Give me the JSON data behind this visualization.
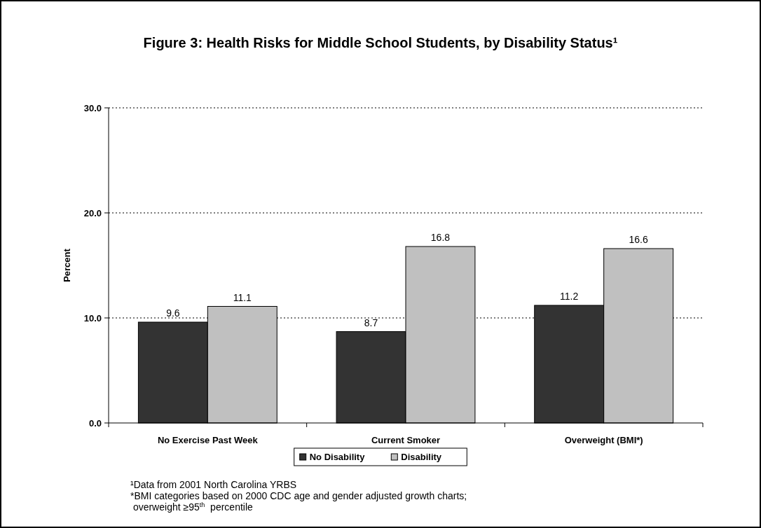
{
  "chart_data": {
    "type": "bar",
    "title": "Figure 3: Health Risks for Middle School Students, by Disability Status¹",
    "ylabel": "Percent",
    "categories": [
      "No Exercise Past Week",
      "Current Smoker",
      "Overweight (BMI*)"
    ],
    "series": [
      {
        "name": "No Disability",
        "color": "#333333",
        "values": [
          9.6,
          8.7,
          11.2
        ]
      },
      {
        "name": "Disability",
        "color": "#c0c0c0",
        "values": [
          11.1,
          16.8,
          16.6
        ]
      }
    ],
    "ylim": [
      0,
      30
    ],
    "yticks": [
      {
        "value": 0,
        "label": "0.0"
      },
      {
        "value": 10,
        "label": "10.0"
      },
      {
        "value": 20,
        "label": "20.0"
      },
      {
        "value": 30,
        "label": "30.0"
      }
    ],
    "grid": "y",
    "legend": "bottom",
    "data_labels": true,
    "annotations": [
      "¹Data from 2001 North Carolina YRBS",
      "*BMI categories based on 2000 CDC age and gender adjusted growth charts;",
      " overweight ≥95$^{th}$  percentile"
    ]
  }
}
